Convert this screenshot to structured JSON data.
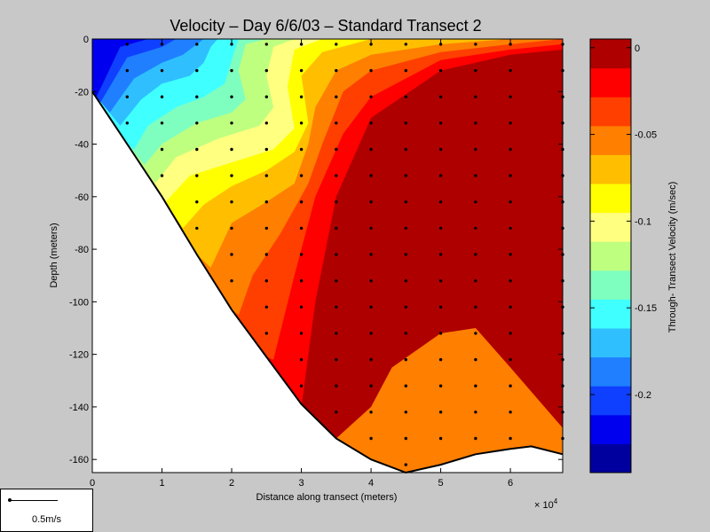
{
  "chart_data": {
    "type": "heatmap",
    "title": "Velocity – Day 6/6/03 – Standard Transect 2",
    "xlabel": "Distance along transect (meters)",
    "ylabel": "Depth (meters)",
    "x_multiplier_label": "× 10",
    "x_multiplier_exp": "4",
    "xlim": [
      0,
      6.75
    ],
    "ylim": [
      -165,
      0
    ],
    "x_ticks": [
      0,
      1,
      2,
      3,
      4,
      5,
      6
    ],
    "y_ticks": [
      0,
      -20,
      -40,
      -60,
      -80,
      -100,
      -120,
      -140,
      -160
    ],
    "colorbar": {
      "label": "Through- Transect Velocity (m/sec)",
      "range": [
        -0.245,
        0.005
      ],
      "ticks": [
        0,
        -0.05,
        -0.1,
        -0.15,
        -0.2
      ],
      "tick_labels": [
        "0",
        "-0.05",
        "-0.1",
        "-0.15",
        "-0.2"
      ],
      "colors": [
        "#00009f",
        "#0000ef",
        "#0f3fff",
        "#1f7fff",
        "#2fbfff",
        "#40ffff",
        "#7fffbf",
        "#bfff80",
        "#ffff80",
        "#ffff00",
        "#ffbf00",
        "#ff7f00",
        "#ff3f00",
        "#ff0000",
        "#af0000"
      ]
    },
    "bottom_profile": [
      [
        0,
        -20
      ],
      [
        0.5,
        -40
      ],
      [
        1,
        -60
      ],
      [
        1.5,
        -82
      ],
      [
        2,
        -103
      ],
      [
        2.5,
        -121
      ],
      [
        3,
        -139
      ],
      [
        3.5,
        -152
      ],
      [
        4,
        -160
      ],
      [
        4.5,
        -165
      ],
      [
        5,
        -162
      ],
      [
        5.5,
        -158
      ],
      [
        6,
        -156
      ],
      [
        6.3,
        -155
      ],
      [
        6.75,
        -158
      ]
    ],
    "velocity_bands": [
      {
        "color": "#af0000",
        "boundary": [
          [
            4,
            -140
          ],
          [
            4.3,
            -125
          ],
          [
            5,
            -112
          ],
          [
            5.5,
            -110
          ],
          [
            6,
            -125
          ],
          [
            6.75,
            -148
          ]
        ]
      },
      {
        "color": "#ff0000",
        "boundary": [
          [
            3,
            -140
          ],
          [
            3.2,
            -100
          ],
          [
            3.5,
            -60
          ],
          [
            4,
            -30
          ],
          [
            5,
            -12
          ],
          [
            6,
            -6
          ],
          [
            6.75,
            -4
          ]
        ]
      },
      {
        "color": "#ff3f00",
        "boundary": [
          [
            2.6,
            -122
          ],
          [
            2.9,
            -90
          ],
          [
            3.2,
            -60
          ],
          [
            3.6,
            -36
          ],
          [
            4,
            -22
          ],
          [
            5,
            -8
          ],
          [
            6,
            -4
          ],
          [
            6.75,
            -2
          ]
        ]
      },
      {
        "color": "#ff7f00",
        "boundary": [
          [
            2.1,
            -105
          ],
          [
            2.3,
            -90
          ],
          [
            2.7,
            -74
          ],
          [
            3.1,
            -55
          ],
          [
            3.3,
            -40
          ],
          [
            3.6,
            -20
          ],
          [
            4,
            -12
          ],
          [
            5,
            -5
          ],
          [
            6,
            -2
          ],
          [
            6.75,
            0
          ]
        ]
      },
      {
        "color": "#ffbf00",
        "boundary": [
          [
            1.7,
            -87
          ],
          [
            2,
            -70
          ],
          [
            2.5,
            -62
          ],
          [
            2.9,
            -55
          ],
          [
            3.1,
            -40
          ],
          [
            3.2,
            -26
          ],
          [
            3.5,
            -12
          ],
          [
            4,
            -6
          ],
          [
            5,
            -2
          ],
          [
            6,
            0
          ]
        ]
      },
      {
        "color": "#ffff00",
        "boundary": [
          [
            1.3,
            -72
          ],
          [
            1.6,
            -63
          ],
          [
            2,
            -56
          ],
          [
            2.5,
            -50
          ],
          [
            2.9,
            -43
          ],
          [
            3.1,
            -32
          ],
          [
            3,
            -14
          ],
          [
            3.3,
            -5
          ],
          [
            4,
            0
          ]
        ]
      },
      {
        "color": "#ffff80",
        "boundary": [
          [
            1.05,
            -62
          ],
          [
            1.4,
            -52
          ],
          [
            2,
            -47
          ],
          [
            2.6,
            -42
          ],
          [
            2.9,
            -34
          ],
          [
            2.8,
            -18
          ],
          [
            2.9,
            -4
          ],
          [
            3.3,
            0
          ]
        ]
      },
      {
        "color": "#bfff80",
        "boundary": [
          [
            0.9,
            -55
          ],
          [
            1.2,
            -45
          ],
          [
            1.8,
            -38
          ],
          [
            2.4,
            -33
          ],
          [
            2.6,
            -26
          ],
          [
            2.5,
            -14
          ],
          [
            2.6,
            -3
          ],
          [
            2.9,
            0
          ]
        ]
      },
      {
        "color": "#7fffbf",
        "boundary": [
          [
            0.75,
            -48
          ],
          [
            1,
            -40
          ],
          [
            1.5,
            -32
          ],
          [
            2,
            -28
          ],
          [
            2.2,
            -23
          ],
          [
            2.1,
            -12
          ],
          [
            2.2,
            -2
          ],
          [
            2.5,
            0
          ]
        ]
      },
      {
        "color": "#40ffff",
        "boundary": [
          [
            0.6,
            -42
          ],
          [
            0.8,
            -33
          ],
          [
            1.2,
            -26
          ],
          [
            1.6,
            -22
          ],
          [
            1.9,
            -17
          ],
          [
            2,
            -8
          ],
          [
            2.1,
            0
          ]
        ]
      },
      {
        "color": "#2fbfff",
        "boundary": [
          [
            0.4,
            -33
          ],
          [
            0.7,
            -23
          ],
          [
            1,
            -17
          ],
          [
            1.4,
            -14
          ],
          [
            1.6,
            -9
          ],
          [
            1.7,
            -3
          ],
          [
            1.8,
            0
          ]
        ]
      },
      {
        "color": "#1f7fff",
        "boundary": [
          [
            0.25,
            -28
          ],
          [
            0.6,
            -15
          ],
          [
            1,
            -9
          ],
          [
            1.3,
            -6
          ],
          [
            1.5,
            -2
          ],
          [
            1.6,
            0
          ]
        ]
      },
      {
        "color": "#0f3fff",
        "boundary": [
          [
            0.12,
            -24
          ],
          [
            0.5,
            -7
          ],
          [
            1,
            -3
          ],
          [
            1.2,
            0
          ]
        ]
      },
      {
        "color": "#0000ef",
        "boundary": [
          [
            0.06,
            -22
          ],
          [
            0.4,
            -3
          ],
          [
            0.8,
            0
          ]
        ]
      }
    ],
    "patches": [
      {
        "color": "#af0000",
        "points": [
          [
            6.5,
            -10
          ],
          [
            6.3,
            -25
          ],
          [
            6.6,
            -30
          ],
          [
            6.75,
            -27
          ],
          [
            6.75,
            -8
          ]
        ]
      }
    ],
    "profile_stations": [
      0.5,
      1,
      1.5,
      2,
      2.5,
      3,
      3.5,
      4,
      4.5,
      5,
      5.5,
      6,
      6.75
    ],
    "profile_spacing_m": 10
  },
  "scale": {
    "label": "0.5m/s"
  }
}
